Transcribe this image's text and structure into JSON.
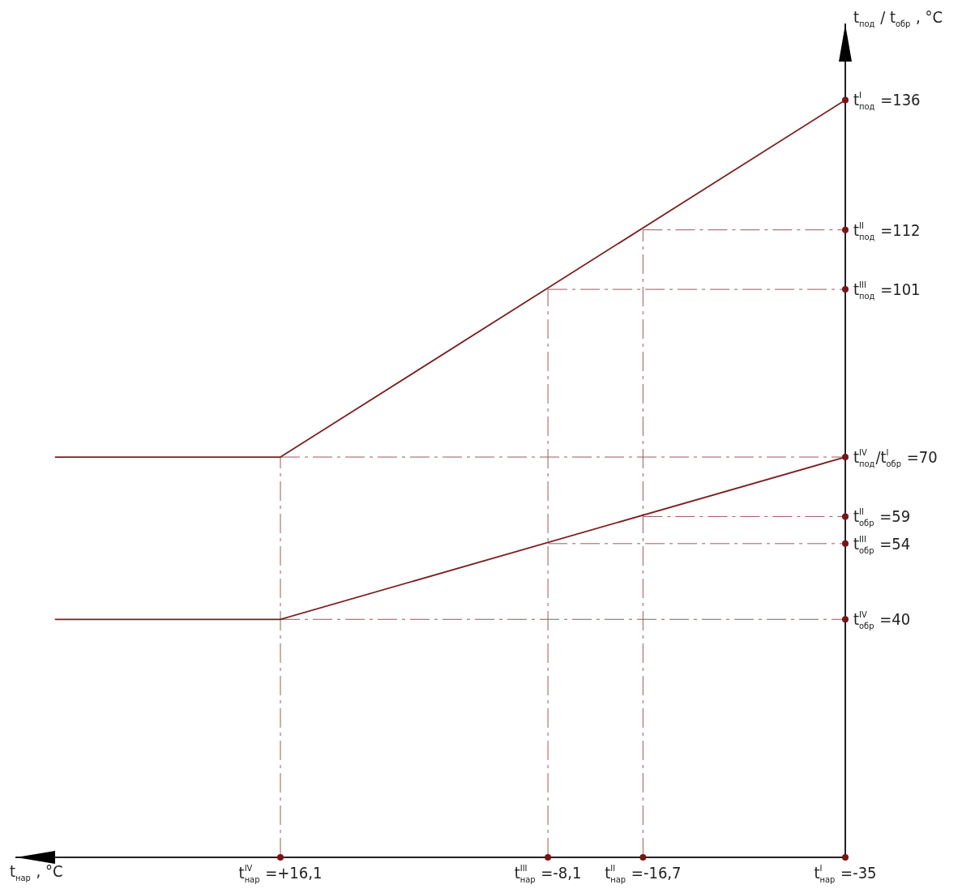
{
  "chart_data": {
    "type": "line",
    "xlabel": "t$_{нар}$ , °C",
    "ylabel": "t$_{под}$ / t$_{обр}$ , °C",
    "xlim": [
      40,
      -35
    ],
    "ylim": [
      -4,
      150
    ],
    "xticks": [
      {
        "value": 16.1,
        "label": "t$^{IV}$$_{нар}$ =+16,1"
      },
      {
        "value": -8.1,
        "label": "t$^{III}$$_{нар}$ =-8,1"
      },
      {
        "value": -16.7,
        "label": "t$^{II}$$_{нар}$ =-16,7"
      },
      {
        "value": -35,
        "label": "t$^{I}$$_{нар}$ =-35"
      }
    ],
    "yticks": [
      {
        "value": 136,
        "label": "t$^{I}$$_{под}$ =136"
      },
      {
        "value": 112,
        "label": "t$^{II}$$_{под}$ =112"
      },
      {
        "value": 101,
        "label": "t$^{III}$$_{под}$ =101"
      },
      {
        "value": 70,
        "label": "t$^{IV}$$_{под}$/t$^{I}$$_{обр}$ =70"
      },
      {
        "value": 59,
        "label": "t$^{II}$$_{обр}$ =59"
      },
      {
        "value": 54,
        "label": "t$^{III}$$_{обр}$ =54"
      },
      {
        "value": 40,
        "label": "t$^{IV}$$_{обр}$ =40"
      }
    ],
    "grid": false,
    "legend": false,
    "line_style": "solid",
    "series": [
      {
        "color": "#7a1f1f",
        "x": [
          36.5,
          16.1,
          -35
        ],
        "values": [
          70,
          70,
          136
        ]
      },
      {
        "color": "#7a1f1f",
        "x": [
          36.5,
          16.1,
          -35
        ],
        "values": [
          40,
          40,
          70
        ]
      },
      {
        "color": "#9a5a5a",
        "line_style": "dashed",
        "x": [
          -16.7,
          -35
        ],
        "values": [
          112,
          112
        ]
      },
      {
        "color": "#9a5a5a",
        "line_style": "dashed",
        "x": [
          -8.1,
          -35
        ],
        "values": [
          101,
          101
        ]
      },
      {
        "color": "#9a5a5a",
        "line_style": "dashed",
        "x": [
          16.1,
          -35
        ],
        "values": [
          70,
          70
        ]
      },
      {
        "color": "#9a5a5a",
        "line_style": "dashed",
        "x": [
          -16.7,
          -35
        ],
        "values": [
          59,
          59
        ]
      },
      {
        "color": "#9a5a5a",
        "line_style": "dashed",
        "x": [
          -8.1,
          -35
        ],
        "values": [
          54,
          54
        ]
      },
      {
        "color": "#9a5a5a",
        "line_style": "dashed",
        "x": [
          16.1,
          -35
        ],
        "values": [
          40,
          40
        ]
      },
      {
        "color": "#9a5a5a",
        "line_style": "dashed",
        "x": [
          16.1,
          16.1
        ],
        "values": [
          -4,
          70
        ]
      },
      {
        "color": "#9a5a5a",
        "line_style": "dashed",
        "x": [
          -8.1,
          -8.1
        ],
        "values": [
          -4,
          101
        ]
      },
      {
        "color": "#9a5a5a",
        "line_style": "dashed",
        "x": [
          -16.7,
          -16.7
        ],
        "values": [
          -4,
          112
        ]
      }
    ]
  }
}
